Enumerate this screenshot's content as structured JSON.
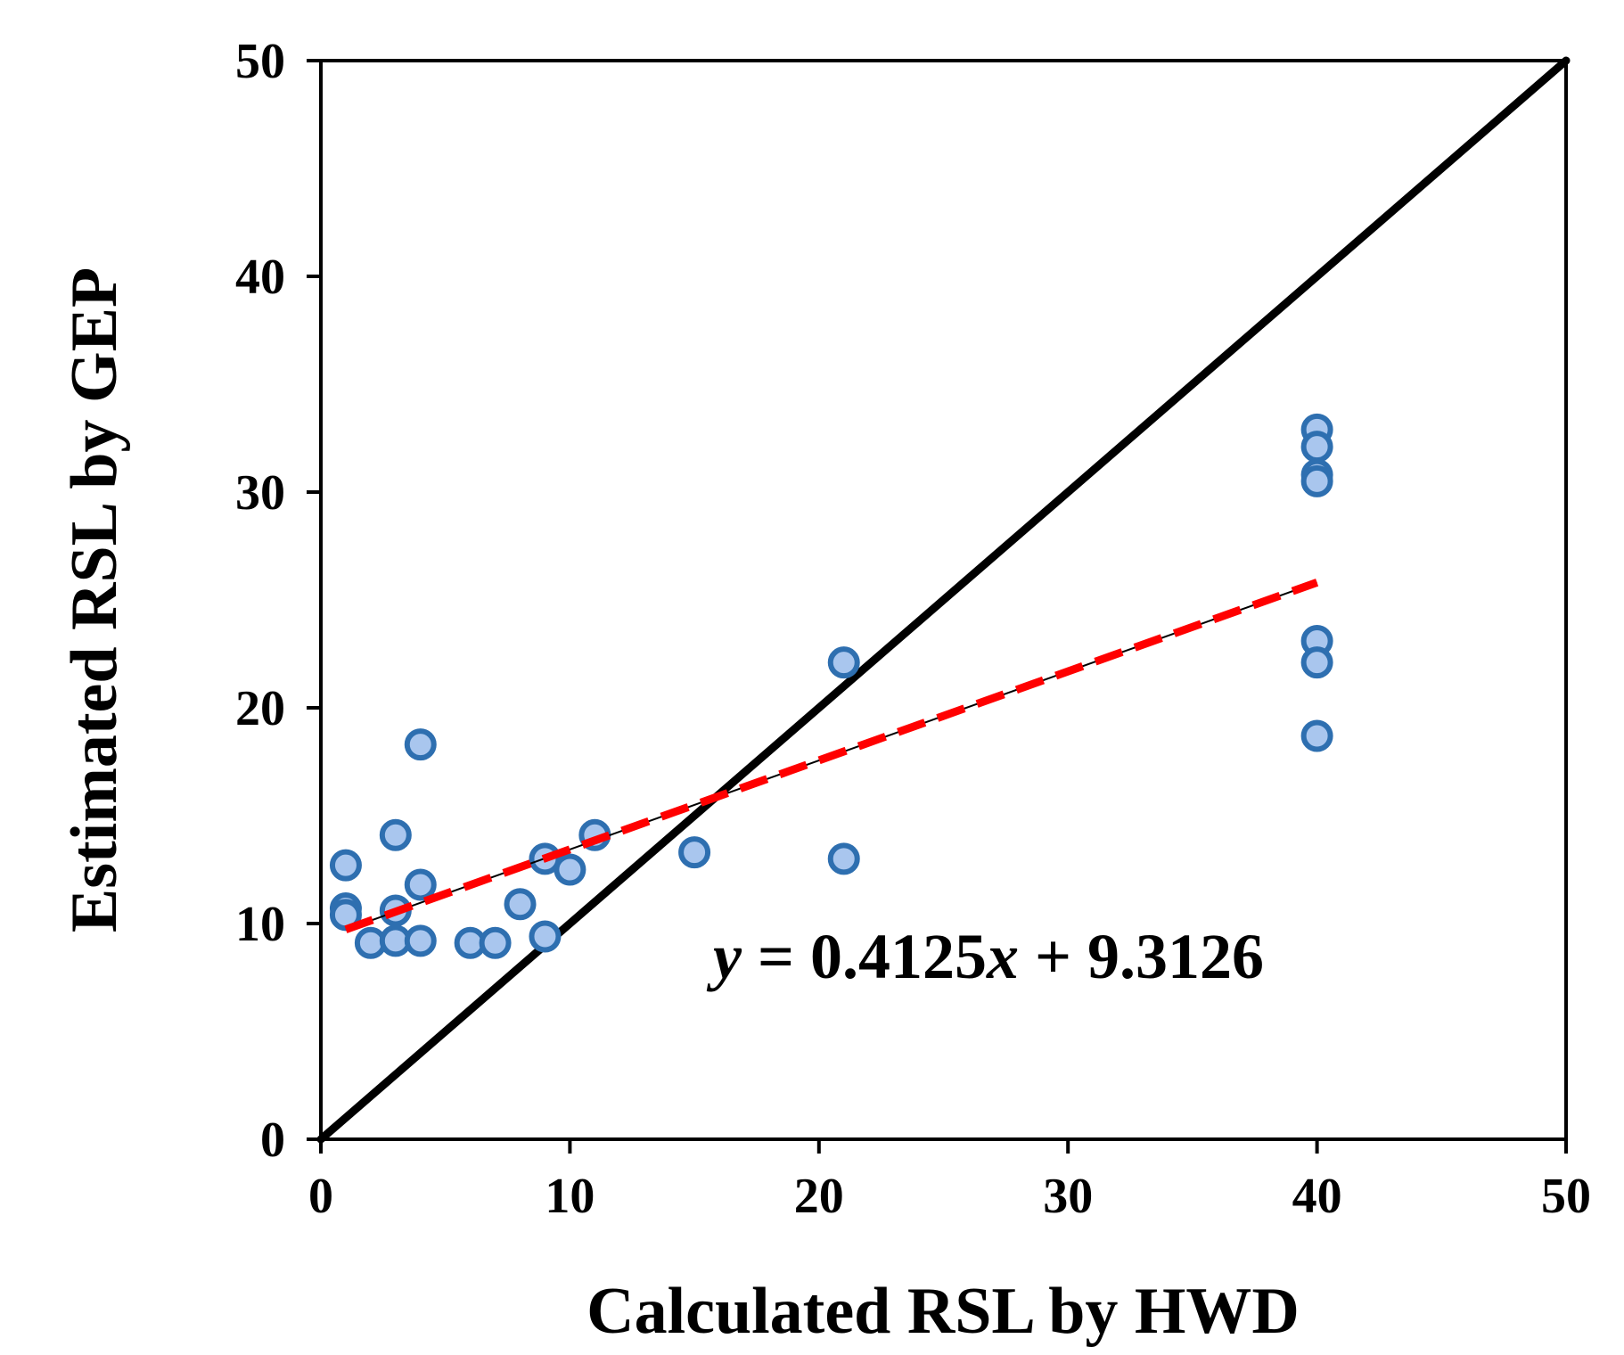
{
  "chart_data": {
    "type": "scatter",
    "title": "",
    "xlabel": "Calculated RSL by HWD",
    "ylabel": "Estimated RSL by GEP",
    "xlim": [
      0,
      50
    ],
    "ylim": [
      0,
      50
    ],
    "xticks": [
      0,
      10,
      20,
      30,
      40,
      50
    ],
    "yticks": [
      0,
      10,
      20,
      30,
      40,
      50
    ],
    "xtick_labels": [
      "0",
      "10",
      "20",
      "30",
      "40",
      "50"
    ],
    "ytick_labels": [
      "0",
      "10",
      "20",
      "30",
      "40",
      "50"
    ],
    "grid": false,
    "legend": "none",
    "series": [
      {
        "name": "data points",
        "marker": "circle",
        "color": "#a9c6ee",
        "edge_color": "#2e6fb0",
        "points": [
          {
            "x": 1,
            "y": 12.7
          },
          {
            "x": 1,
            "y": 10.7
          },
          {
            "x": 1,
            "y": 10.4
          },
          {
            "x": 2,
            "y": 9.1
          },
          {
            "x": 3,
            "y": 14.1
          },
          {
            "x": 3,
            "y": 10.6
          },
          {
            "x": 3,
            "y": 9.2
          },
          {
            "x": 4,
            "y": 18.3
          },
          {
            "x": 4,
            "y": 11.8
          },
          {
            "x": 4,
            "y": 9.2
          },
          {
            "x": 6,
            "y": 9.1
          },
          {
            "x": 7,
            "y": 9.1
          },
          {
            "x": 8,
            "y": 10.9
          },
          {
            "x": 9,
            "y": 13.0
          },
          {
            "x": 9,
            "y": 9.4
          },
          {
            "x": 10,
            "y": 12.5
          },
          {
            "x": 11,
            "y": 14.1
          },
          {
            "x": 15,
            "y": 13.3
          },
          {
            "x": 21,
            "y": 22.1
          },
          {
            "x": 21,
            "y": 13.0
          },
          {
            "x": 40,
            "y": 32.9
          },
          {
            "x": 40,
            "y": 32.1
          },
          {
            "x": 40,
            "y": 30.8
          },
          {
            "x": 40,
            "y": 30.5
          },
          {
            "x": 40,
            "y": 23.1
          },
          {
            "x": 40,
            "y": 22.1
          },
          {
            "x": 40,
            "y": 18.7
          }
        ]
      }
    ],
    "lines": [
      {
        "name": "line-of-equality",
        "x": [
          0,
          50
        ],
        "y": [
          0,
          50
        ],
        "color": "#000000",
        "style": "solid"
      },
      {
        "name": "trendline",
        "x": [
          1,
          40
        ],
        "slope": 0.4125,
        "intercept": 9.3126,
        "color": "#ff0000",
        "style": "dashed"
      }
    ],
    "annotation": {
      "y_var": "y",
      "eq_mid": " = 0.4125",
      "x_var": "x",
      "eq_end": " + 9.3126"
    }
  }
}
